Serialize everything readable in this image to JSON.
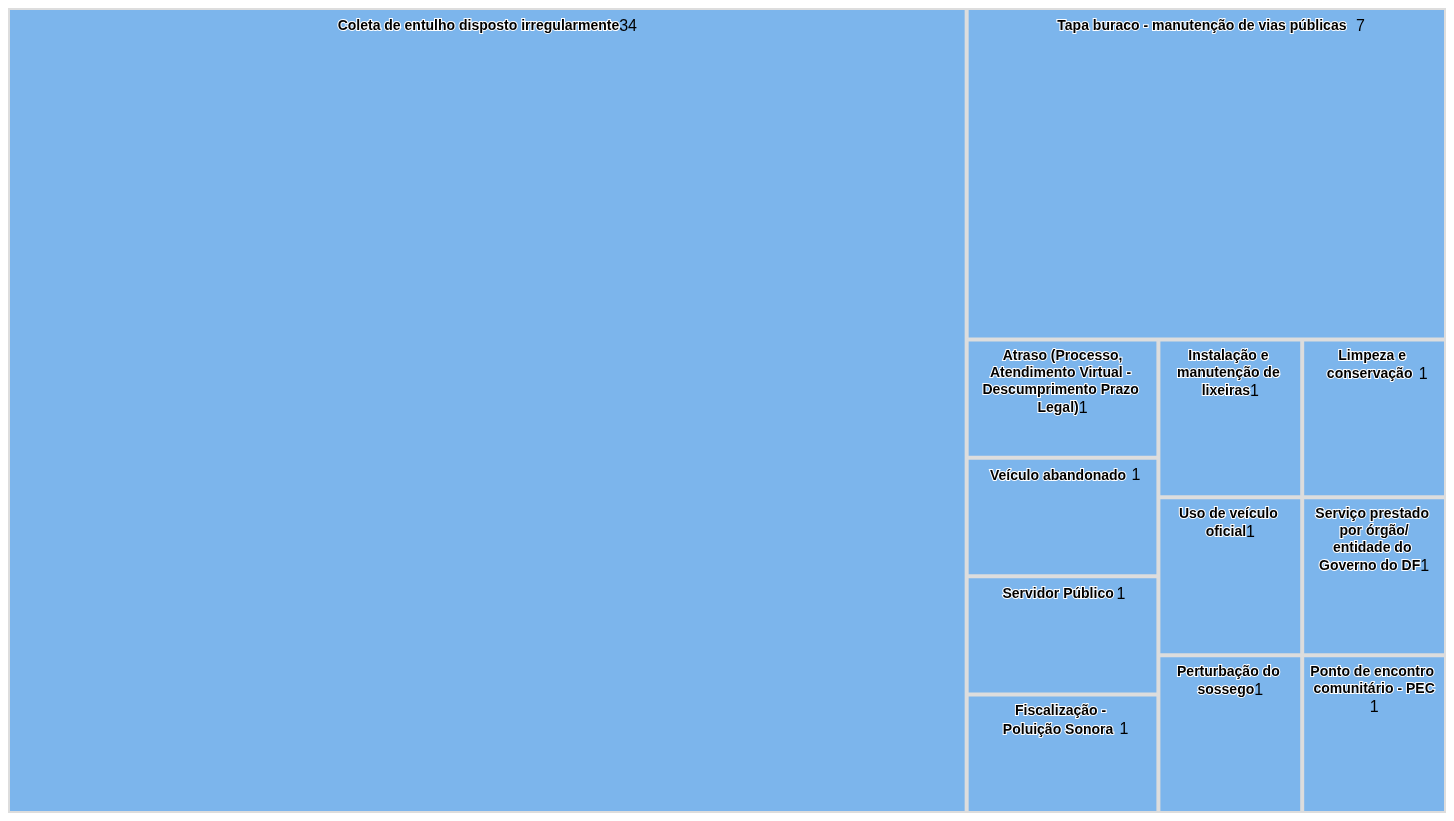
{
  "chart_data": {
    "type": "other",
    "categories": [
      "Coleta de entulho disposto irregularmente",
      "Tapa buraco - manutenção de vias públicas",
      "Ponto de encontro comunitário - PEC",
      "Perturbação do sossego",
      "Serviço prestado por órgão/entidade do Governo do DF",
      "Uso de veículo oficial",
      "Limpeza e conservação",
      "Instalação e manutenção de lixeiras",
      "Fiscalização - Poluição Sonora",
      "Servidor Público",
      "Veículo abandonado",
      "Atraso (Processo,Atendimento Virtual - Descumprimento Prazo Legal)"
    ],
    "values": [
      34,
      7,
      1,
      1,
      1,
      1,
      1,
      1,
      1,
      1,
      1,
      1
    ],
    "color": "#7cb5ec",
    "data_labels": true
  }
}
